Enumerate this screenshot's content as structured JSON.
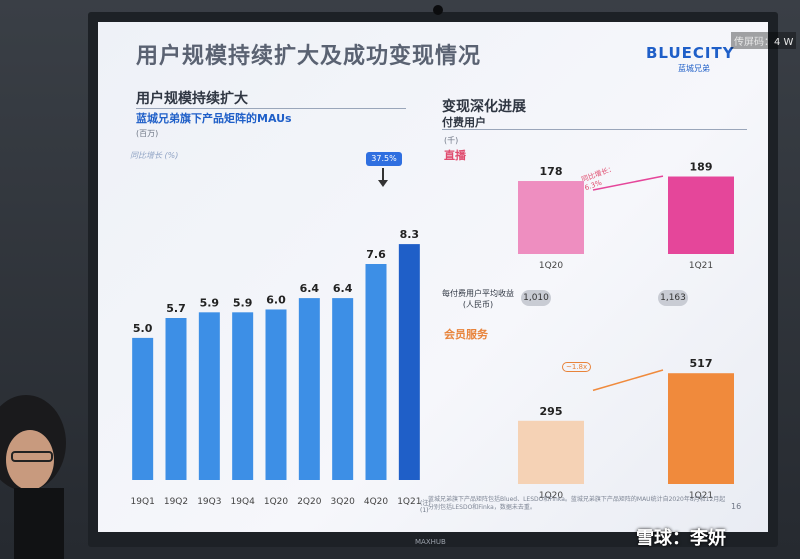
{
  "slide": {
    "title": "用户规模持续扩大及成功变现情况",
    "logo": "BLUECITY",
    "logo_sub": "蓝城兄弟",
    "page_number": "16",
    "footnote": "蓝城兄弟旗下产品矩阵包括Blued、LESDO和Finka。蓝城兄弟旗下产品矩阵的MAU统计自2020年8月和12月起分别包括LESDO和Finka，数据未去重。",
    "note_label": "(注)\n(1)"
  },
  "left": {
    "section_title": "用户规模持续扩大",
    "subtitle": "蓝城兄弟旗下产品矩阵的MAUs",
    "unit": "(百万)",
    "yoy_label": "同比增长 (%)",
    "callout": "37.5%"
  },
  "right": {
    "section_title": "变现深化进展",
    "subtitle": "付费用户",
    "unit": "(千)",
    "live_label": "直播",
    "arpu_label": "每付费用户平均收益\n(人民币)",
    "member_label": "会员服务",
    "live_growth": "同比增长：\n6.3%",
    "member_growth": "~1.8x",
    "arpu_values": [
      "1,010",
      "1,163"
    ]
  },
  "chart_data": [
    {
      "type": "bar",
      "title": "蓝城兄弟旗下产品矩阵的MAUs",
      "ylabel": "(百万)",
      "categories": [
        "19Q1",
        "19Q2",
        "19Q3",
        "19Q4",
        "1Q20",
        "2Q20",
        "3Q20",
        "4Q20",
        "1Q21"
      ],
      "values": [
        5.0,
        5.7,
        5.9,
        5.9,
        6.0,
        6.4,
        6.4,
        7.6,
        8.3
      ],
      "value_labels": [
        "5.0",
        "5.7",
        "5.9",
        "5.9",
        "6.0",
        "6.4",
        "6.4",
        "7.6",
        "8.3"
      ],
      "ylim": [
        0,
        9.5
      ],
      "colors": {
        "bar": "#3d8fe6",
        "highlight": "#1f5fc8"
      }
    },
    {
      "type": "bar",
      "title": "直播",
      "categories": [
        "1Q20",
        "1Q21"
      ],
      "values": [
        178,
        189
      ],
      "ylim": [
        0,
        200
      ],
      "colors": {
        "bars": [
          "#ee8ec0",
          "#e5469a"
        ]
      }
    },
    {
      "type": "bar",
      "title": "会员服务",
      "categories": [
        "1Q20",
        "1Q21"
      ],
      "values": [
        295,
        517
      ],
      "ylim": [
        0,
        560
      ],
      "colors": {
        "bars": [
          "#f5d2b5",
          "#f08a3c"
        ]
      }
    }
  ],
  "overlay": {
    "broadcast": "传屏码：4 W",
    "watermark": "雪球：李妍",
    "brand": "MAXHUB"
  }
}
